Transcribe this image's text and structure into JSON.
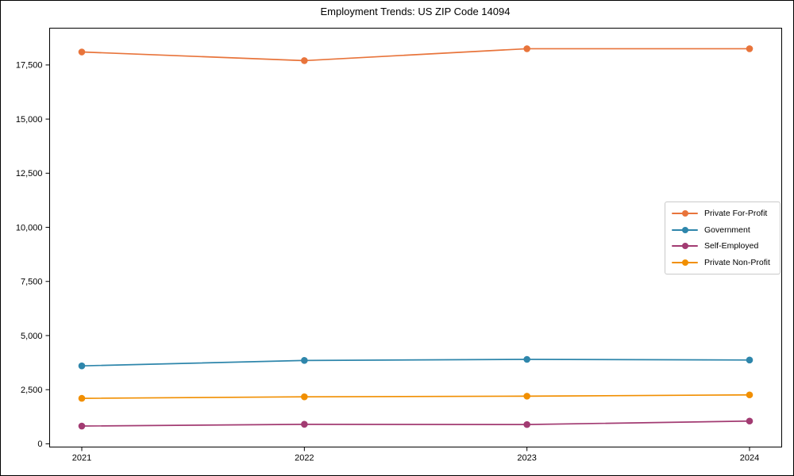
{
  "title": "Employment Trends: US ZIP Code 14094",
  "chart_data": {
    "type": "line",
    "x_labels": [
      "2021",
      "2022",
      "2023",
      "2024"
    ],
    "series": [
      {
        "name": "Private For-Profit",
        "color": "#E8743B",
        "values": [
          18100,
          17700,
          18250,
          18250
        ]
      },
      {
        "name": "Government",
        "color": "#2E86AB",
        "values": [
          3600,
          3850,
          3900,
          3870
        ]
      },
      {
        "name": "Self-Employed",
        "color": "#A23B72",
        "values": [
          820,
          900,
          890,
          1050
        ]
      },
      {
        "name": "Private Non-Profit",
        "color": "#F18F01",
        "values": [
          2100,
          2170,
          2200,
          2260
        ]
      }
    ],
    "ylim": [
      -150,
      19200
    ],
    "yticks": [
      0,
      2500,
      5000,
      7500,
      10000,
      12500,
      15000,
      17500
    ],
    "ytick_labels": [
      "0",
      "2,500",
      "5,000",
      "7,500",
      "10,000",
      "12,500",
      "15,000",
      "17,500"
    ],
    "grid": false,
    "legend_position": "center-right",
    "marker": "circle"
  }
}
